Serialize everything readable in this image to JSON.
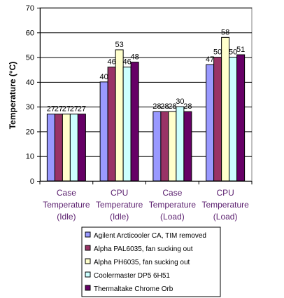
{
  "chart_data": {
    "type": "bar",
    "title": "",
    "xlabel": "",
    "ylabel": "Temperature (°C)",
    "ylim": [
      0,
      70
    ],
    "yticks": [
      0,
      10,
      20,
      30,
      40,
      50,
      60,
      70
    ],
    "grid": true,
    "legend_position": "bottom-right",
    "categories": [
      [
        "Case",
        "Temperature",
        "(Idle)"
      ],
      [
        "CPU",
        "Temperature",
        "(Idle)"
      ],
      [
        "Case",
        "Temperature",
        "(Load)"
      ],
      [
        "CPU",
        "Temperature",
        "(Load)"
      ]
    ],
    "series": [
      {
        "name": "Agilent Arcticooler CA, TIM removed",
        "color": "#9999ff",
        "values": [
          27,
          40,
          28,
          47
        ]
      },
      {
        "name": "Alpha PAL6035, fan sucking out",
        "color": "#993366",
        "values": [
          27,
          46,
          28,
          50
        ]
      },
      {
        "name": "Alpha PH6035, fan sucking out",
        "color": "#ffffcc",
        "values": [
          27,
          53,
          28,
          58
        ]
      },
      {
        "name": "Coolermaster DP5 6H51",
        "color": "#ccffff",
        "values": [
          27,
          46,
          30,
          50
        ]
      },
      {
        "name": "Thermaltake Chrome Orb",
        "color": "#660066",
        "values": [
          27,
          48,
          28,
          51
        ]
      }
    ]
  }
}
